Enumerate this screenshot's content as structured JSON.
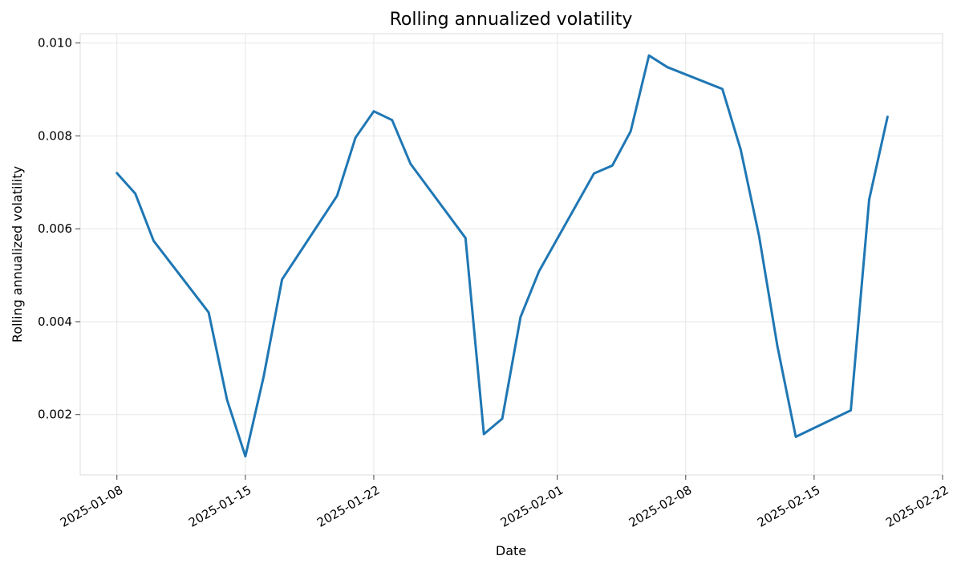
{
  "chart_data": {
    "type": "line",
    "title": "Rolling annualized volatility",
    "xlabel": "Date",
    "ylabel": "Rolling annualized volatility",
    "x_ticks": [
      "2025-01-08",
      "2025-01-15",
      "2025-01-22",
      "2025-02-01",
      "2025-02-08",
      "2025-02-15",
      "2025-02-22"
    ],
    "y_ticks": [
      "0.002",
      "0.004",
      "0.006",
      "0.008",
      "0.010"
    ],
    "xlim": [
      "2025-01-06",
      "2025-02-22"
    ],
    "ylim": [
      0.0007,
      0.0102
    ],
    "grid": true,
    "colors": {
      "series": "#1f77b4"
    },
    "series": [
      {
        "x": [
          "2025-01-08",
          "2025-01-09",
          "2025-01-10",
          "2025-01-13",
          "2025-01-14",
          "2025-01-15",
          "2025-01-16",
          "2025-01-17",
          "2025-01-20",
          "2025-01-21",
          "2025-01-22",
          "2025-01-23",
          "2025-01-24",
          "2025-01-27",
          "2025-01-28",
          "2025-01-29",
          "2025-01-30",
          "2025-01-31",
          "2025-02-03",
          "2025-02-04",
          "2025-02-05",
          "2025-02-06",
          "2025-02-07",
          "2025-02-10",
          "2025-02-11",
          "2025-02-12",
          "2025-02-13",
          "2025-02-14",
          "2025-02-17",
          "2025-02-18",
          "2025-02-19"
        ],
        "values": [
          0.0072,
          0.00676,
          0.00574,
          0.0042,
          0.00232,
          0.0011,
          0.00282,
          0.00491,
          0.00671,
          0.00796,
          0.00853,
          0.00834,
          0.0074,
          0.0058,
          0.00158,
          0.00191,
          0.0041,
          0.00508,
          0.00719,
          0.00736,
          0.0081,
          0.00973,
          0.00948,
          0.00901,
          0.0077,
          0.00584,
          0.00347,
          0.00152,
          0.00209,
          0.00663,
          0.00841
        ]
      }
    ]
  }
}
